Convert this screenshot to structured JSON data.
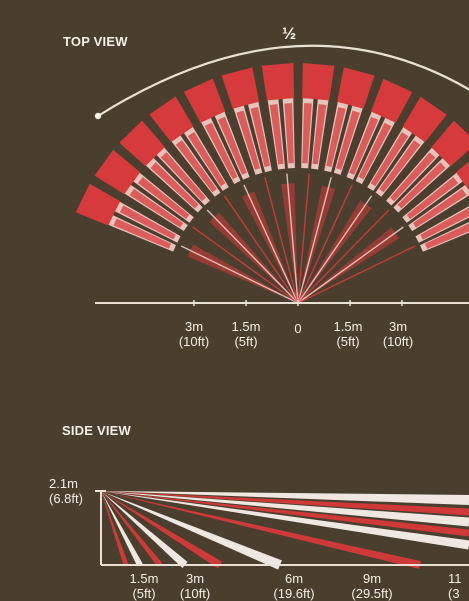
{
  "top_view": {
    "title": "TOP VIEW",
    "angle_label": "½",
    "axis_ticks": [
      {
        "m": "3m",
        "ft": "(10ft)"
      },
      {
        "m": "1.5m",
        "ft": "(5ft)"
      },
      {
        "m": "0",
        "ft": ""
      },
      {
        "m": "1.5m",
        "ft": "(5ft)"
      },
      {
        "m": "3m",
        "ft": "(10ft)"
      }
    ]
  },
  "side_view": {
    "title": "SIDE VIEW",
    "height_label": "2.1m",
    "height_label_ft": "(6.8ft)",
    "axis_ticks": [
      {
        "m": "1.5m",
        "ft": "(5ft)"
      },
      {
        "m": "3m",
        "ft": "(10ft)"
      },
      {
        "m": "6m",
        "ft": "(19.6ft)"
      },
      {
        "m": "9m",
        "ft": "(29.5ft)"
      },
      {
        "m": "11",
        "ft": "(3"
      }
    ]
  },
  "colors": {
    "background": "#4a3f2f",
    "beam_red": "#d63a3a",
    "beam_light": "#f1c9c4",
    "beam_white": "#f7f1ea",
    "axis": "#e9e1d3"
  }
}
